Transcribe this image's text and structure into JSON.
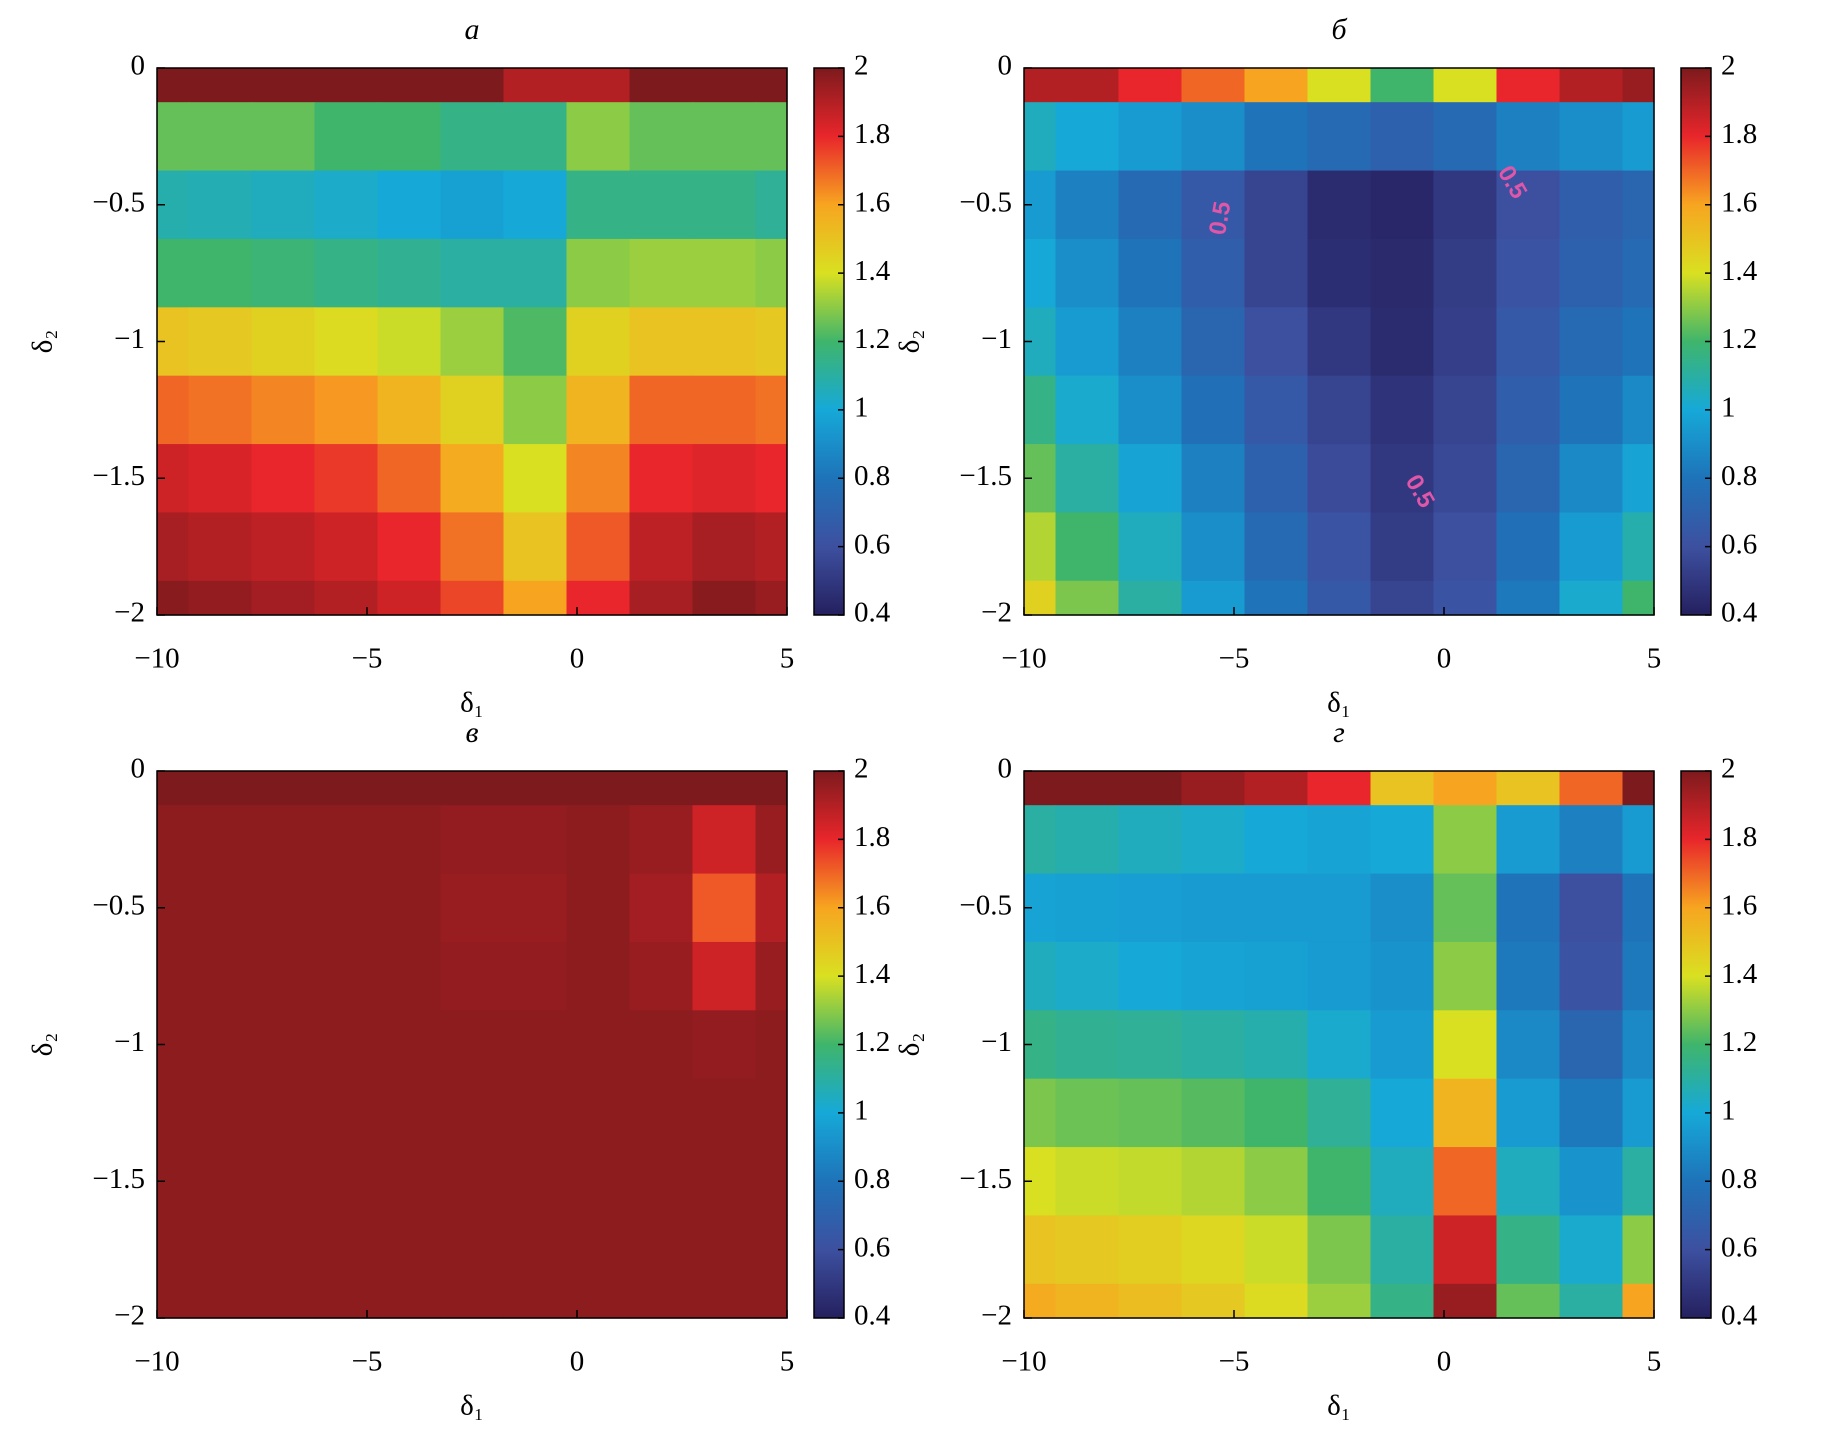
{
  "chart_data": [
    {
      "type": "heatmap",
      "title": "а",
      "x_label": "δ₁",
      "y_label": "δ₂",
      "x": [
        -10,
        -8.5,
        -7,
        -5.5,
        -4,
        -2.5,
        -1,
        0.5,
        2,
        3.5,
        5
      ],
      "y": [
        0,
        -0.25,
        -0.5,
        -0.75,
        -1,
        -1.25,
        -1.5,
        -1.75,
        -2
      ],
      "z": [
        [
          2,
          2,
          2,
          2,
          2,
          2,
          1.9,
          1.9,
          2,
          2,
          2
        ],
        [
          1.25,
          1.25,
          1.25,
          1.2,
          1.2,
          1.15,
          1.15,
          1.3,
          1.25,
          1.25,
          1.25
        ],
        [
          1.08,
          1.07,
          1.05,
          1.03,
          1.0,
          0.97,
          1.0,
          1.15,
          1.15,
          1.15,
          1.12
        ],
        [
          1.2,
          1.2,
          1.18,
          1.15,
          1.13,
          1.1,
          1.1,
          1.3,
          1.32,
          1.32,
          1.3
        ],
        [
          1.5,
          1.48,
          1.45,
          1.42,
          1.38,
          1.32,
          1.22,
          1.45,
          1.5,
          1.5,
          1.48
        ],
        [
          1.7,
          1.68,
          1.65,
          1.62,
          1.55,
          1.45,
          1.3,
          1.55,
          1.7,
          1.7,
          1.68
        ],
        [
          1.85,
          1.83,
          1.8,
          1.77,
          1.7,
          1.58,
          1.4,
          1.65,
          1.8,
          1.82,
          1.8
        ],
        [
          1.92,
          1.9,
          1.88,
          1.85,
          1.8,
          1.68,
          1.5,
          1.72,
          1.88,
          1.92,
          1.9
        ],
        [
          1.98,
          1.96,
          1.93,
          1.9,
          1.85,
          1.75,
          1.6,
          1.8,
          1.92,
          1.98,
          1.95
        ]
      ],
      "xlim": [
        -10,
        5
      ],
      "ylim": [
        -2,
        0
      ],
      "xticks": [
        {
          "value": -10,
          "label": "−10"
        },
        {
          "value": -5,
          "label": "−5"
        },
        0,
        5
      ],
      "yticks": [
        0,
        {
          "value": -0.5,
          "label": "−0.5"
        },
        {
          "value": -1,
          "label": "−1"
        },
        {
          "value": -1.5,
          "label": "−1.5"
        },
        {
          "value": -2,
          "label": "−2"
        }
      ],
      "clim": [
        0.4,
        2
      ],
      "cticks": [
        0.4,
        0.6,
        0.8,
        1,
        1.2,
        1.4,
        1.6,
        1.8,
        2
      ],
      "colormap": [
        "#25205f",
        "#3d50a0",
        "#1e73b9",
        "#16a9d8",
        "#3fb56b",
        "#d9e021",
        "#f7a520",
        "#e8262b",
        "#7d1a1d"
      ]
    },
    {
      "type": "heatmap",
      "title": "б",
      "x_label": "δ₁",
      "y_label": "δ₂",
      "x": [
        -10,
        -8.5,
        -7,
        -5.5,
        -4,
        -2.5,
        -1,
        0.5,
        2,
        3.5,
        5
      ],
      "y": [
        0,
        -0.25,
        -0.5,
        -0.75,
        -1,
        -1.25,
        -1.5,
        -1.75,
        -2
      ],
      "z": [
        [
          1.9,
          1.9,
          1.8,
          1.7,
          1.6,
          1.4,
          1.2,
          1.4,
          1.8,
          1.9,
          1.95
        ],
        [
          1.05,
          1.0,
          0.95,
          0.9,
          0.8,
          0.75,
          0.7,
          0.75,
          0.85,
          0.9,
          0.95
        ],
        [
          0.95,
          0.85,
          0.75,
          0.65,
          0.55,
          0.45,
          0.43,
          0.5,
          0.6,
          0.68,
          0.72
        ],
        [
          1.0,
          0.9,
          0.8,
          0.68,
          0.55,
          0.46,
          0.44,
          0.52,
          0.62,
          0.7,
          0.75
        ],
        [
          1.05,
          0.95,
          0.85,
          0.72,
          0.6,
          0.5,
          0.45,
          0.53,
          0.65,
          0.75,
          0.8
        ],
        [
          1.15,
          1.02,
          0.9,
          0.78,
          0.65,
          0.55,
          0.48,
          0.55,
          0.68,
          0.8,
          0.88
        ],
        [
          1.25,
          1.1,
          0.98,
          0.85,
          0.7,
          0.58,
          0.5,
          0.57,
          0.72,
          0.88,
          0.98
        ],
        [
          1.35,
          1.2,
          1.05,
          0.9,
          0.75,
          0.62,
          0.52,
          0.6,
          0.78,
          0.95,
          1.08
        ],
        [
          1.45,
          1.28,
          1.1,
          0.95,
          0.8,
          0.65,
          0.55,
          0.62,
          0.82,
          1.02,
          1.2
        ]
      ],
      "annotations": [
        "0.5",
        "0.5",
        "0.5"
      ],
      "xlim": [
        -10,
        5
      ],
      "ylim": [
        -2,
        0
      ],
      "xticks": [
        {
          "value": -10,
          "label": "−10"
        },
        {
          "value": -5,
          "label": "−5"
        },
        0,
        5
      ],
      "yticks": [
        0,
        {
          "value": -0.5,
          "label": "−0.5"
        },
        {
          "value": -1,
          "label": "−1"
        },
        {
          "value": -1.5,
          "label": "−1.5"
        },
        {
          "value": -2,
          "label": "−2"
        }
      ],
      "clim": [
        0.4,
        2
      ],
      "cticks": [
        0.4,
        0.6,
        0.8,
        1,
        1.2,
        1.4,
        1.6,
        1.8,
        2
      ],
      "colormap": [
        "#25205f",
        "#3d50a0",
        "#1e73b9",
        "#16a9d8",
        "#3fb56b",
        "#d9e021",
        "#f7a520",
        "#e8262b",
        "#7d1a1d"
      ]
    },
    {
      "type": "heatmap",
      "title": "в",
      "x_label": "δ₁",
      "y_label": "δ₂",
      "x": [
        -10,
        -8.5,
        -7,
        -5.5,
        -4,
        -2.5,
        -1,
        0.5,
        2,
        3.5,
        5
      ],
      "y": [
        0,
        -0.25,
        -0.5,
        -0.75,
        -1,
        -1.25,
        -1.5,
        -1.75,
        -2
      ],
      "z": [
        [
          2,
          2,
          2,
          2,
          2,
          2,
          2,
          2,
          2,
          2,
          2
        ],
        [
          1.97,
          1.97,
          1.97,
          1.97,
          1.97,
          1.96,
          1.96,
          1.97,
          1.95,
          1.85,
          1.95
        ],
        [
          1.97,
          1.97,
          1.97,
          1.97,
          1.97,
          1.95,
          1.95,
          1.97,
          1.93,
          1.72,
          1.9
        ],
        [
          1.97,
          1.97,
          1.97,
          1.97,
          1.97,
          1.96,
          1.96,
          1.97,
          1.95,
          1.85,
          1.95
        ],
        [
          1.97,
          1.97,
          1.97,
          1.97,
          1.97,
          1.97,
          1.97,
          1.97,
          1.97,
          1.96,
          1.97
        ],
        [
          1.97,
          1.97,
          1.97,
          1.97,
          1.97,
          1.97,
          1.97,
          1.97,
          1.97,
          1.97,
          1.97
        ],
        [
          1.97,
          1.97,
          1.97,
          1.97,
          1.97,
          1.97,
          1.97,
          1.97,
          1.97,
          1.97,
          1.97
        ],
        [
          1.97,
          1.97,
          1.97,
          1.97,
          1.97,
          1.97,
          1.97,
          1.97,
          1.97,
          1.97,
          1.97
        ],
        [
          1.97,
          1.97,
          1.97,
          1.97,
          1.97,
          1.97,
          1.97,
          1.97,
          1.97,
          1.97,
          1.97
        ]
      ],
      "xlim": [
        -10,
        5
      ],
      "ylim": [
        -2,
        0
      ],
      "xticks": [
        {
          "value": -10,
          "label": "−10"
        },
        {
          "value": -5,
          "label": "−5"
        },
        0,
        5
      ],
      "yticks": [
        0,
        {
          "value": -0.5,
          "label": "−0.5"
        },
        {
          "value": -1,
          "label": "−1"
        },
        {
          "value": -1.5,
          "label": "−1.5"
        },
        {
          "value": -2,
          "label": "−2"
        }
      ],
      "clim": [
        0.4,
        2
      ],
      "cticks": [
        0.4,
        0.6,
        0.8,
        1,
        1.2,
        1.4,
        1.6,
        1.8,
        2
      ],
      "colormap": [
        "#25205f",
        "#3d50a0",
        "#1e73b9",
        "#16a9d8",
        "#3fb56b",
        "#d9e021",
        "#f7a520",
        "#e8262b",
        "#7d1a1d"
      ]
    },
    {
      "type": "heatmap",
      "title": "г",
      "x_label": "δ₁",
      "y_label": "δ₂",
      "x": [
        -10,
        -8.5,
        -7,
        -5.5,
        -4,
        -2.5,
        -1,
        0.5,
        2,
        3.5,
        5
      ],
      "y": [
        0,
        -0.25,
        -0.5,
        -0.75,
        -1,
        -1.25,
        -1.5,
        -1.75,
        -2
      ],
      "z": [
        [
          2,
          2,
          2,
          1.95,
          1.9,
          1.8,
          1.5,
          1.6,
          1.5,
          1.7,
          2
        ],
        [
          1.1,
          1.08,
          1.05,
          1.03,
          1.0,
          0.98,
          1.0,
          1.3,
          0.95,
          0.85,
          0.95
        ],
        [
          0.98,
          0.97,
          0.96,
          0.95,
          0.95,
          0.95,
          0.9,
          1.25,
          0.8,
          0.6,
          0.8
        ],
        [
          1.05,
          1.03,
          1.0,
          0.98,
          0.97,
          0.95,
          0.92,
          1.3,
          0.82,
          0.62,
          0.82
        ],
        [
          1.15,
          1.13,
          1.12,
          1.1,
          1.08,
          1.02,
          0.95,
          1.4,
          0.88,
          0.72,
          0.88
        ],
        [
          1.28,
          1.26,
          1.25,
          1.23,
          1.2,
          1.12,
          1.0,
          1.55,
          0.95,
          0.82,
          0.95
        ],
        [
          1.4,
          1.38,
          1.37,
          1.35,
          1.3,
          1.2,
          1.05,
          1.7,
          1.05,
          0.92,
          1.1
        ],
        [
          1.5,
          1.48,
          1.46,
          1.43,
          1.38,
          1.28,
          1.1,
          1.85,
          1.15,
          1.02,
          1.3
        ],
        [
          1.58,
          1.55,
          1.52,
          1.48,
          1.42,
          1.32,
          1.15,
          1.95,
          1.25,
          1.1,
          1.6
        ]
      ],
      "xlim": [
        -10,
        5
      ],
      "ylim": [
        -2,
        0
      ],
      "xticks": [
        {
          "value": -10,
          "label": "−10"
        },
        {
          "value": -5,
          "label": "−5"
        },
        0,
        5
      ],
      "yticks": [
        0,
        {
          "value": -0.5,
          "label": "−0.5"
        },
        {
          "value": -1,
          "label": "−1"
        },
        {
          "value": -1.5,
          "label": "−1.5"
        },
        {
          "value": -2,
          "label": "−2"
        }
      ],
      "clim": [
        0.4,
        2
      ],
      "cticks": [
        0.4,
        0.6,
        0.8,
        1,
        1.2,
        1.4,
        1.6,
        1.8,
        2
      ],
      "colormap": [
        "#25205f",
        "#3d50a0",
        "#1e73b9",
        "#16a9d8",
        "#3fb56b",
        "#d9e021",
        "#f7a520",
        "#e8262b",
        "#7d1a1d"
      ]
    }
  ]
}
